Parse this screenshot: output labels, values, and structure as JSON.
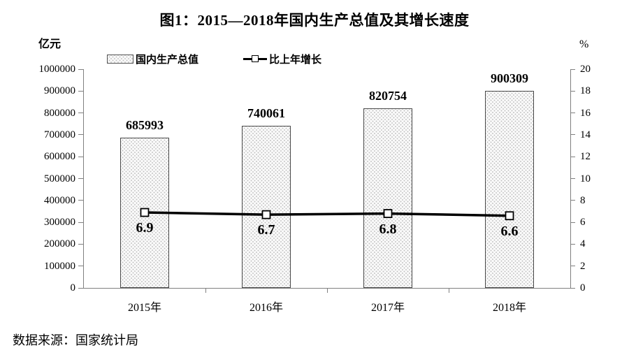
{
  "title": "图1：2015—2018年国内生产总值及其增长速度",
  "source_note": "数据来源：国家统计局",
  "axes": {
    "left_unit": "亿元",
    "right_unit": "%"
  },
  "legend": {
    "bar_label": "国内生产总值",
    "line_label": "比上年增长"
  },
  "chart_data": {
    "type": "bar",
    "title": "图1：2015—2018年国内生产总值及其增长速度",
    "categories": [
      "2015年",
      "2016年",
      "2017年",
      "2018年"
    ],
    "series": [
      {
        "name": "国内生产总值",
        "type": "bar",
        "axis": "left",
        "values": [
          685993,
          740061,
          820754,
          900309
        ]
      },
      {
        "name": "比上年增长",
        "type": "line",
        "axis": "right",
        "values": [
          6.9,
          6.7,
          6.8,
          6.6
        ]
      }
    ],
    "left_axis": {
      "label": "亿元",
      "min": 0,
      "max": 1000000,
      "step": 100000
    },
    "right_axis": {
      "label": "%",
      "min": 0,
      "max": 20,
      "step": 2
    },
    "grid": false,
    "legend_position": "top"
  },
  "colors": {
    "text": "#000000",
    "axis": "#808080",
    "bar_fill": "#fafafa",
    "bar_dot": "#c4c4c4",
    "bar_border": "#4a4a4a",
    "line": "#000000",
    "marker_fill": "#ffffff"
  }
}
